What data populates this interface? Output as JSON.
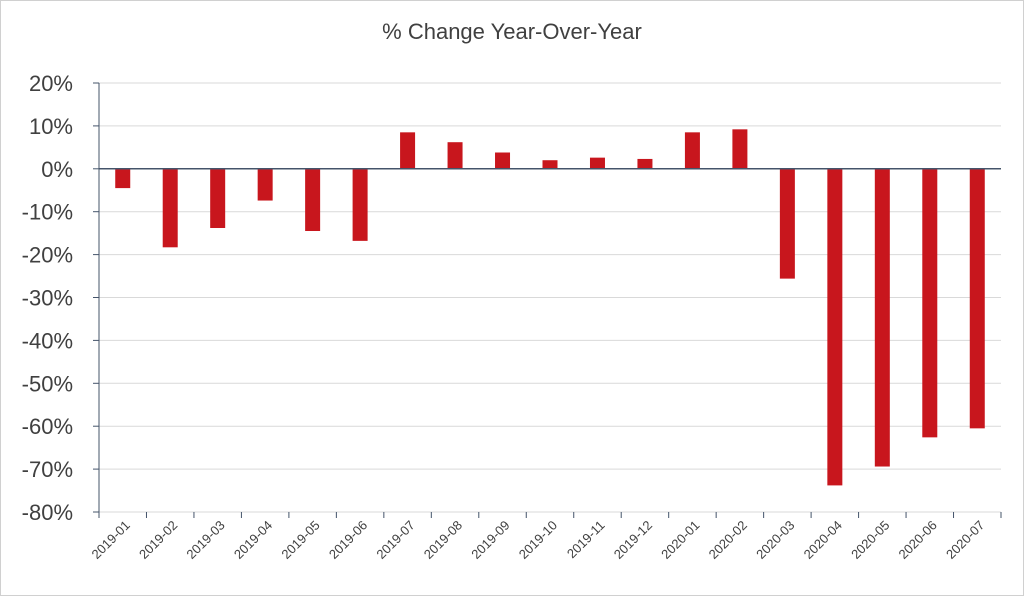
{
  "chart_data": {
    "type": "bar",
    "title": "% Change Year-Over-Year",
    "xlabel": "",
    "ylabel": "",
    "categories": [
      "2019-01",
      "2019-02",
      "2019-03",
      "2019-04",
      "2019-05",
      "2019-06",
      "2019-07",
      "2019-08",
      "2019-09",
      "2019-10",
      "2019-11",
      "2019-12",
      "2020-01",
      "2020-02",
      "2020-03",
      "2020-04",
      "2020-05",
      "2020-06",
      "2020-07"
    ],
    "values": [
      -4.5,
      -18.3,
      -13.8,
      -7.4,
      -14.5,
      -16.8,
      8.5,
      6.2,
      3.8,
      2.0,
      2.6,
      2.3,
      8.5,
      9.2,
      -25.6,
      -73.8,
      -69.4,
      -62.6,
      -60.5
    ],
    "ylim": [
      -80,
      20
    ],
    "yticks": [
      20,
      10,
      0,
      -10,
      -20,
      -30,
      -40,
      -50,
      -60,
      -70,
      -80
    ],
    "ytick_labels": [
      "20%",
      "10%",
      "0%",
      "-10%",
      "-20%",
      "-30%",
      "-40%",
      "-50%",
      "-60%",
      "-70%",
      "-80%"
    ],
    "grid": true,
    "legend": "none",
    "bar_color": "#c8161d",
    "axis_color": "#44546a",
    "grid_color": "#d9d9d9"
  }
}
